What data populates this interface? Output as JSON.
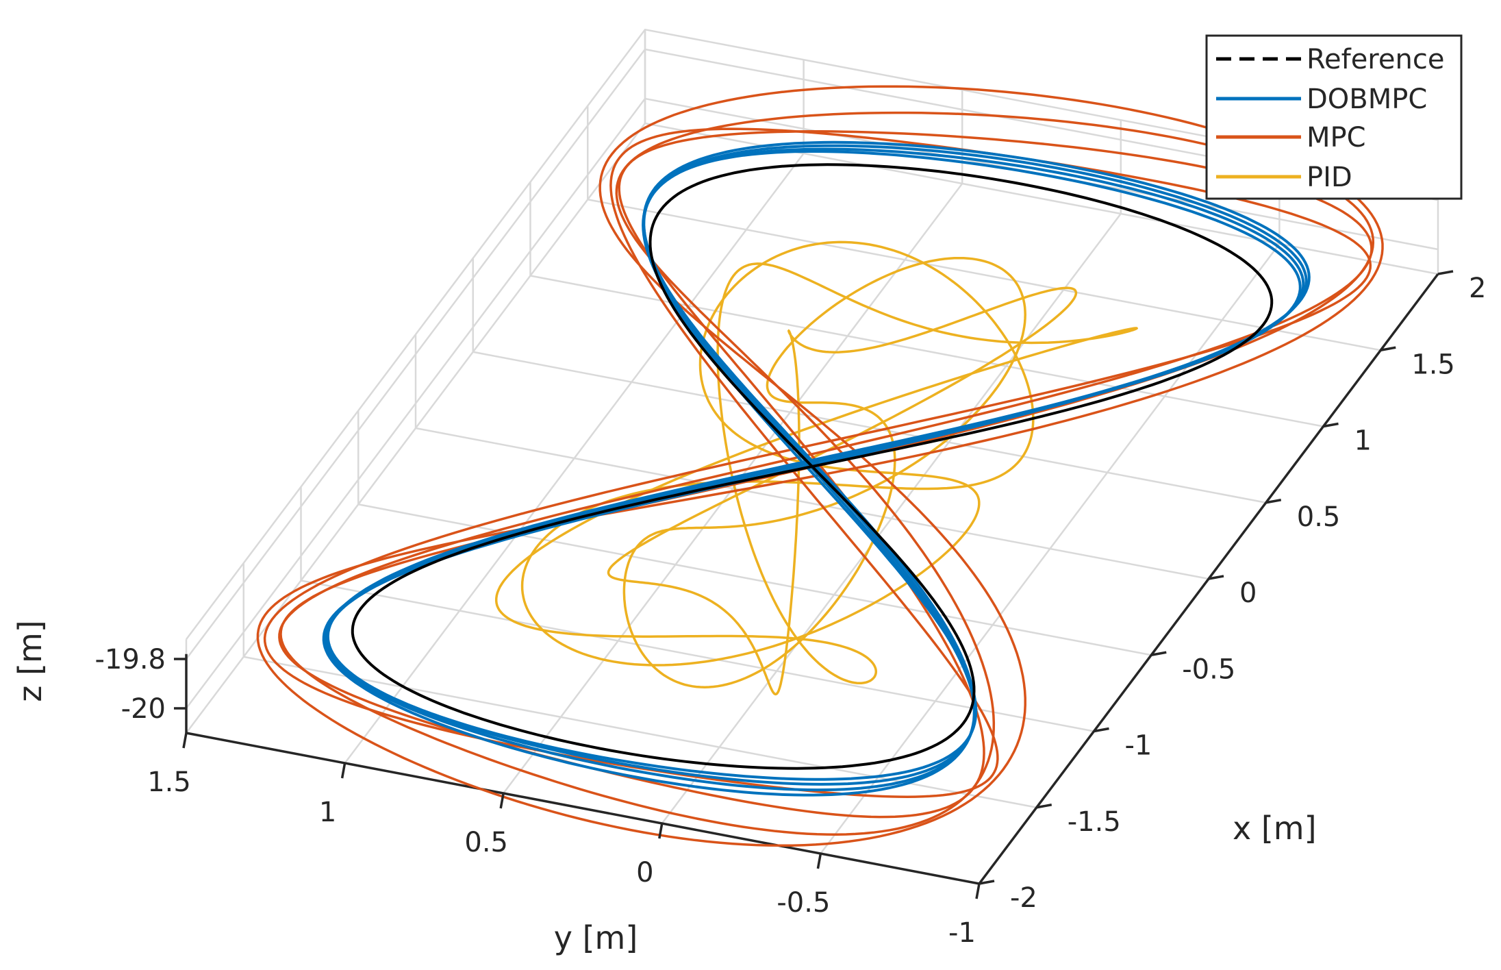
{
  "chart_data": {
    "type": "line",
    "projection": "3d",
    "grid": true,
    "legend_placement": "top-right",
    "xlabel": "x [m]",
    "ylabel": "y [m]",
    "zlabel": "z [m]",
    "xlim": [
      -2,
      2
    ],
    "ylim": [
      -1,
      1.5
    ],
    "zlim": [
      -20,
      -19.8
    ],
    "x_ticks": [
      "-2",
      "-1.5",
      "-1",
      "-0.5",
      "0",
      "0.5",
      "1",
      "1.5",
      "2"
    ],
    "y_ticks": [
      "1.5",
      "1",
      "0.5",
      "0",
      "-0.5",
      "-1"
    ],
    "z_ticks": [
      "-19.8",
      "-20"
    ],
    "series": [
      {
        "name": "Reference",
        "color": "#000000",
        "style": "dashed",
        "description": "figure-eight path at constant height: x = 2 sin(t), y = sin(2t)/... , amplitude x ±1.9 m, y ±1.0 m"
      },
      {
        "name": "DOBMPC",
        "color": "#0072BD",
        "style": "solid"
      },
      {
        "name": "MPC",
        "color": "#D95319",
        "style": "solid"
      },
      {
        "name": "PID",
        "color": "#EDB120",
        "style": "solid"
      }
    ]
  }
}
